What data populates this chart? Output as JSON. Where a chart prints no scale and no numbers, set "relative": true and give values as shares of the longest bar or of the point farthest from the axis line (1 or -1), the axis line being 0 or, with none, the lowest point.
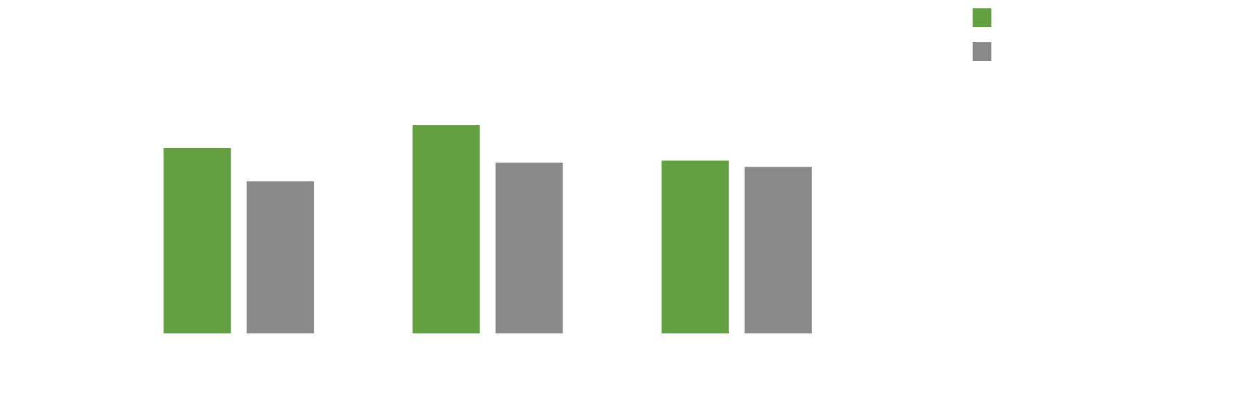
{
  "chart_data": {
    "type": "bar",
    "relative": true,
    "categories": [
      null,
      null,
      null
    ],
    "series": [
      {
        "color": "#63a042",
        "values": [
          0.89,
          1,
          0.83
        ]
      },
      {
        "color": "#898989",
        "values": [
          0.73,
          0.82,
          0.8
        ]
      }
    ]
  }
}
